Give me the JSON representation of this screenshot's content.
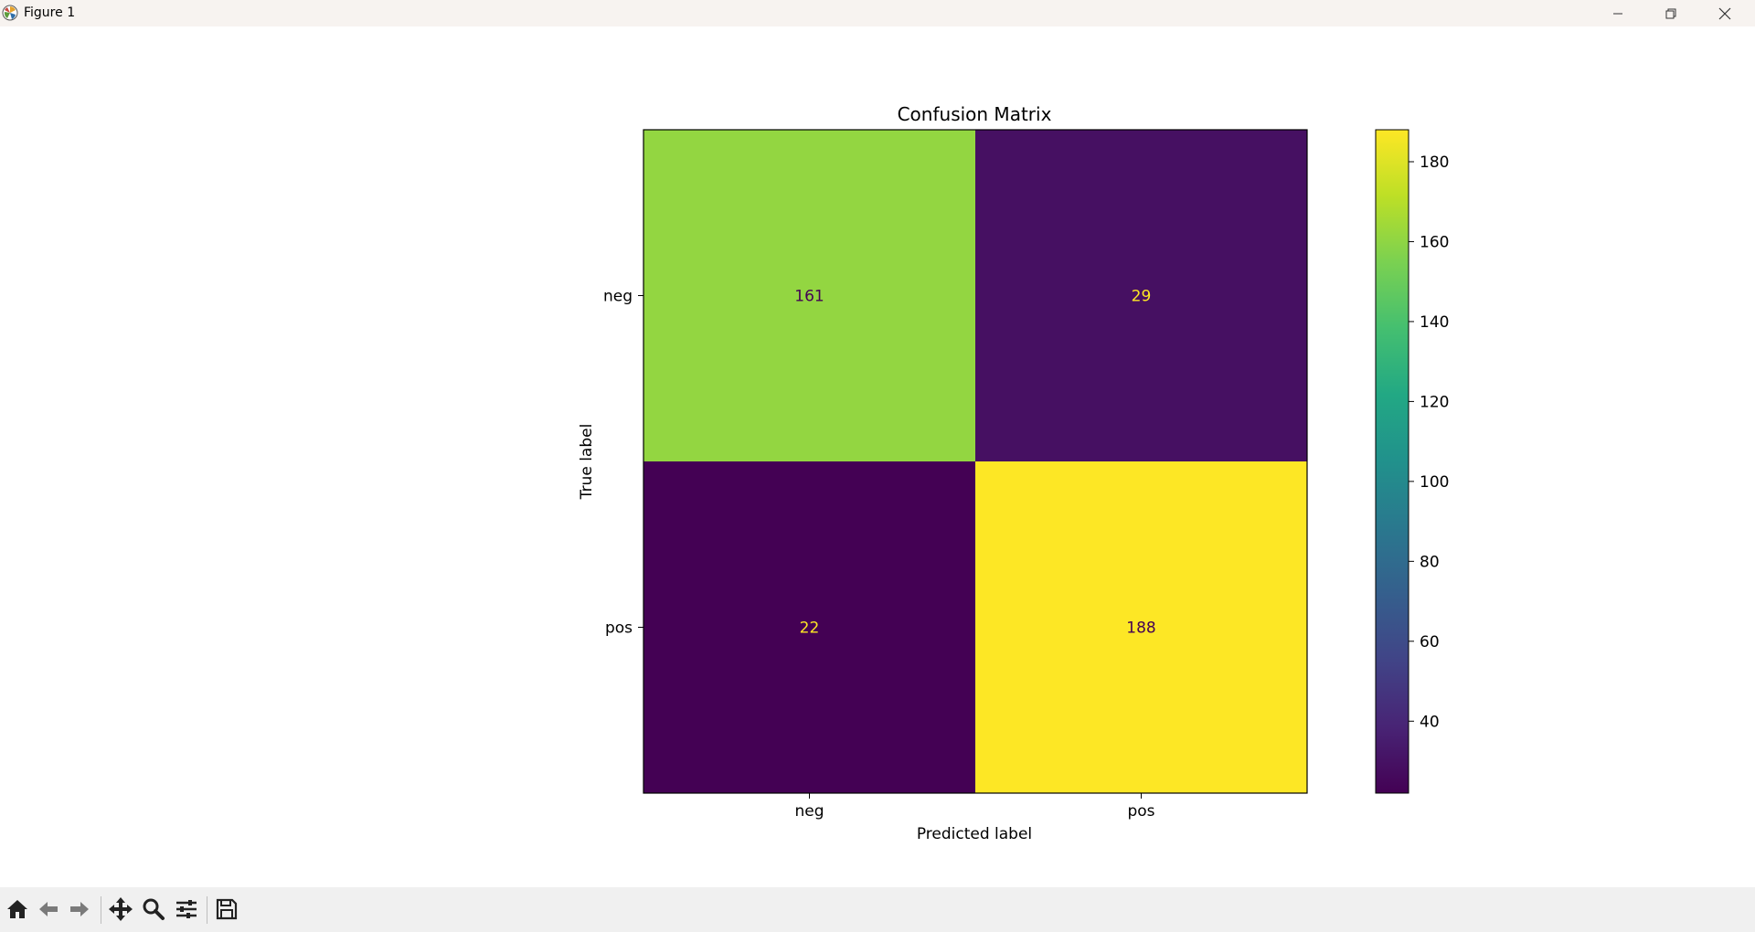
{
  "window": {
    "title": "Figure 1",
    "controls": [
      "minimize",
      "restore",
      "close"
    ]
  },
  "toolbar": {
    "tools": [
      {
        "name": "home-icon"
      },
      {
        "name": "back-arrow-icon"
      },
      {
        "name": "forward-arrow-icon"
      },
      {
        "name": "pan-icon"
      },
      {
        "name": "zoom-icon"
      },
      {
        "name": "configure-subplots-icon"
      },
      {
        "name": "save-icon"
      }
    ]
  },
  "chart_data": {
    "type": "heatmap",
    "title": "Confusion Matrix",
    "xlabel": "Predicted label",
    "ylabel": "True label",
    "x_categories": [
      "neg",
      "pos"
    ],
    "y_categories": [
      "neg",
      "pos"
    ],
    "matrix": [
      [
        161,
        29
      ],
      [
        22,
        188
      ]
    ],
    "colormap": "viridis",
    "colorbar": {
      "min": 22,
      "max": 188,
      "ticks": [
        40,
        60,
        80,
        100,
        120,
        140,
        160,
        180
      ]
    },
    "grid": false
  }
}
